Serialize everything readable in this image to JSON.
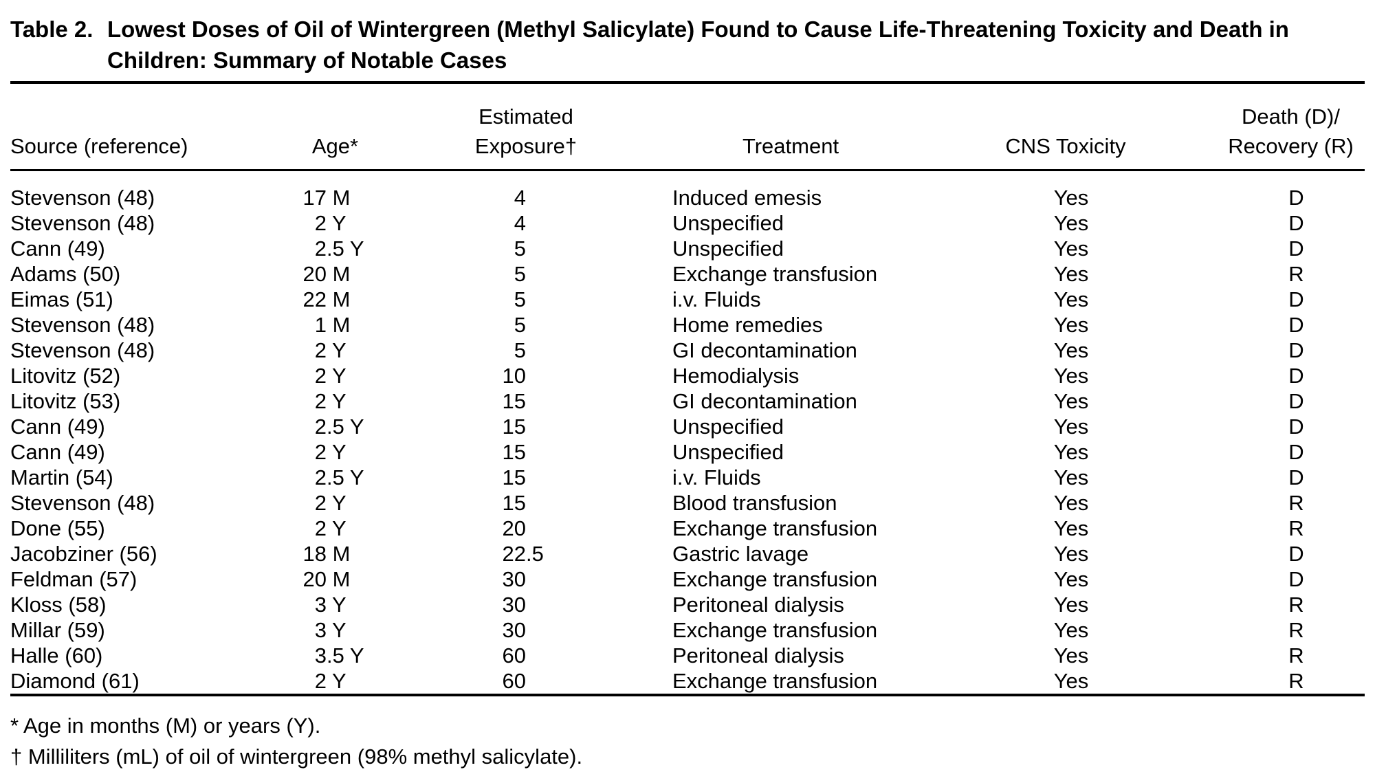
{
  "title": {
    "label": "Table 2.",
    "line1": "Lowest Doses of Oil of Wintergreen (Methyl Salicylate) Found to Cause Life-Threatening Toxicity and Death in",
    "line2": "Children: Summary of Notable Cases"
  },
  "table": {
    "columns": {
      "source": "Source (reference)",
      "age": "Age*",
      "exposure_line1": "Estimated",
      "exposure_line2": "Exposure†",
      "treatment": "Treatment",
      "cns": "CNS Toxicity",
      "outcome_line1": "Death (D)/",
      "outcome_line2": "Recovery (R)"
    },
    "rows": [
      {
        "source": "Stevenson (48)",
        "age": "17 M",
        "exposure": "4",
        "treatment": "Induced emesis",
        "cns": "Yes",
        "outcome": "D"
      },
      {
        "source": "Stevenson (48)",
        "age": "2 Y",
        "exposure": "4",
        "treatment": "Unspecified",
        "cns": "Yes",
        "outcome": "D"
      },
      {
        "source": "Cann (49)",
        "age": "2.5 Y",
        "exposure": "5",
        "treatment": "Unspecified",
        "cns": "Yes",
        "outcome": "D"
      },
      {
        "source": "Adams (50)",
        "age": "20 M",
        "exposure": "5",
        "treatment": "Exchange transfusion",
        "cns": "Yes",
        "outcome": "R"
      },
      {
        "source": "Eimas (51)",
        "age": "22 M",
        "exposure": "5",
        "treatment": "i.v. Fluids",
        "cns": "Yes",
        "outcome": "D"
      },
      {
        "source": "Stevenson (48)",
        "age": "1 M",
        "exposure": "5",
        "treatment": "Home remedies",
        "cns": "Yes",
        "outcome": "D"
      },
      {
        "source": "Stevenson (48)",
        "age": "2 Y",
        "exposure": "5",
        "treatment": "GI decontamination",
        "cns": "Yes",
        "outcome": "D"
      },
      {
        "source": "Litovitz (52)",
        "age": "2 Y",
        "exposure": "10",
        "treatment": "Hemodialysis",
        "cns": "Yes",
        "outcome": "D"
      },
      {
        "source": "Litovitz (53)",
        "age": "2 Y",
        "exposure": "15",
        "treatment": "GI decontamination",
        "cns": "Yes",
        "outcome": "D"
      },
      {
        "source": "Cann (49)",
        "age": "2.5 Y",
        "exposure": "15",
        "treatment": "Unspecified",
        "cns": "Yes",
        "outcome": "D"
      },
      {
        "source": "Cann (49)",
        "age": "2 Y",
        "exposure": "15",
        "treatment": "Unspecified",
        "cns": "Yes",
        "outcome": "D"
      },
      {
        "source": "Martin (54)",
        "age": "2.5 Y",
        "exposure": "15",
        "treatment": "i.v. Fluids",
        "cns": "Yes",
        "outcome": "D"
      },
      {
        "source": "Stevenson (48)",
        "age": "2 Y",
        "exposure": "15",
        "treatment": "Blood transfusion",
        "cns": "Yes",
        "outcome": "R"
      },
      {
        "source": "Done (55)",
        "age": "2 Y",
        "exposure": "20",
        "treatment": "Exchange transfusion",
        "cns": "Yes",
        "outcome": "R"
      },
      {
        "source": "Jacobziner (56)",
        "age": "18 M",
        "exposure": "22.5",
        "treatment": "Gastric lavage",
        "cns": "Yes",
        "outcome": "D"
      },
      {
        "source": "Feldman (57)",
        "age": "20 M",
        "exposure": "30",
        "treatment": "Exchange transfusion",
        "cns": "Yes",
        "outcome": "D"
      },
      {
        "source": "Kloss (58)",
        "age": "3 Y",
        "exposure": "30",
        "treatment": "Peritoneal dialysis",
        "cns": "Yes",
        "outcome": "R"
      },
      {
        "source": "Millar (59)",
        "age": "3 Y",
        "exposure": "30",
        "treatment": "Exchange transfusion",
        "cns": "Yes",
        "outcome": "R"
      },
      {
        "source": "Halle (60)",
        "age": "3.5 Y",
        "exposure": "60",
        "treatment": "Peritoneal dialysis",
        "cns": "Yes",
        "outcome": "R"
      },
      {
        "source": "Diamond (61)",
        "age": "2 Y",
        "exposure": "60",
        "treatment": "Exchange transfusion",
        "cns": "Yes",
        "outcome": "R"
      }
    ]
  },
  "footnotes": [
    "* Age in months (M) or years (Y).",
    "† Milliliters (mL) of oil of wintergreen (98% methyl salicylate)."
  ],
  "colors": {
    "background": "#ffffff",
    "text": "#000000",
    "rule": "#000000"
  }
}
